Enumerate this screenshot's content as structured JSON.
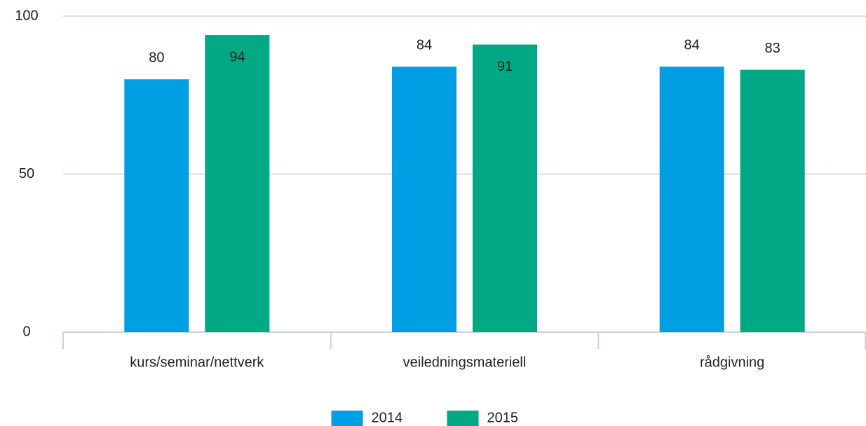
{
  "chart_data": {
    "type": "bar",
    "categories": [
      "kurs/seminar/nettverk",
      "veiledningsmateriell",
      "rådgivning"
    ],
    "series": [
      {
        "name": "2014",
        "color": "#009fe3",
        "values": [
          80,
          84,
          84
        ]
      },
      {
        "name": "2015",
        "color": "#00a884",
        "values": [
          94,
          91,
          83
        ]
      }
    ],
    "ylim": [
      0,
      100
    ],
    "yticks": [
      0,
      50,
      100
    ],
    "grid": true,
    "legend": "bottom"
  }
}
